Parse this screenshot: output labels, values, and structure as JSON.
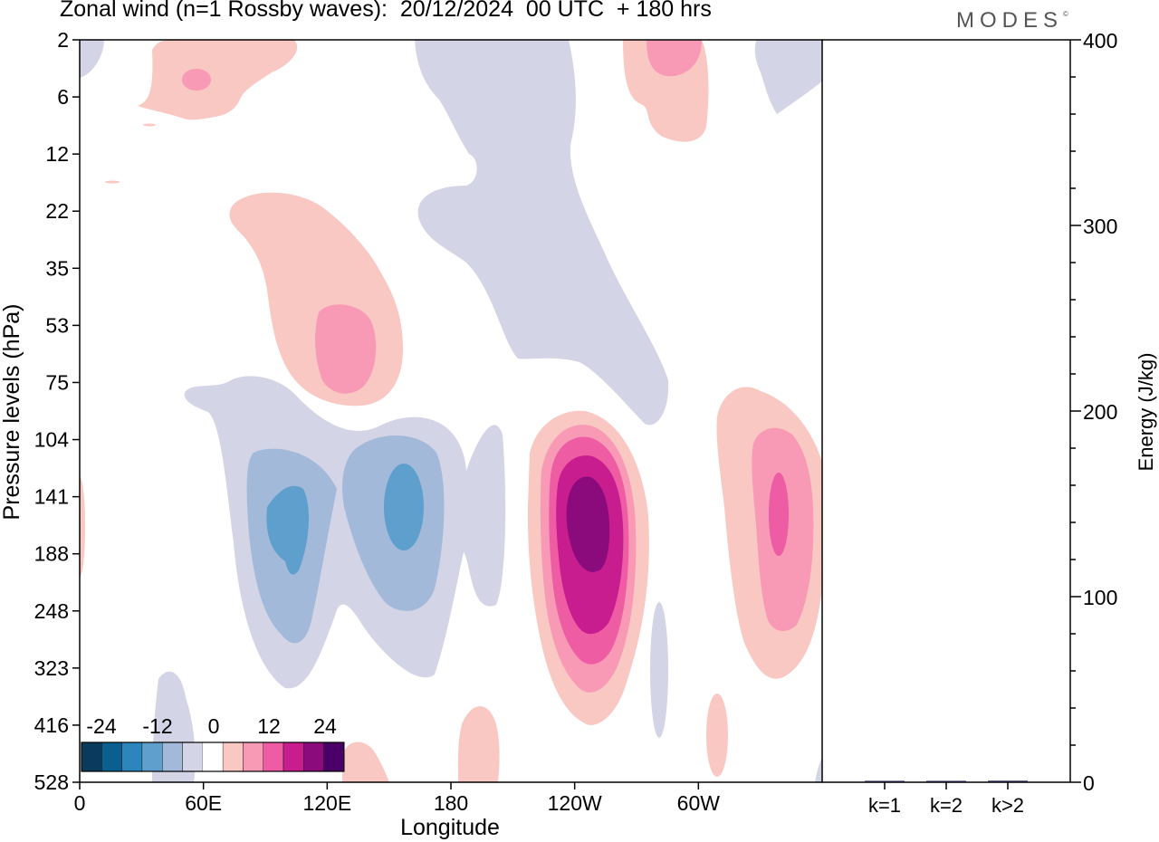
{
  "header": {
    "title": "Zonal wind (n=1 Rossby waves):  20/12/2024  00 UTC  + 180 hrs",
    "brand": "MODES",
    "brand_mark": "©"
  },
  "chart_data": [
    {
      "type": "heatmap",
      "title": "Zonal wind (n=1 Rossby waves):  20/12/2024  00 UTC  + 180 hrs",
      "xlabel": "Longitude",
      "ylabel": "Pressure levels (hPa)",
      "x_ticks": [
        "0",
        "60E",
        "120E",
        "180",
        "120W",
        "60W"
      ],
      "x_range_deg_east": [
        0,
        360
      ],
      "y_ticks": [
        "2",
        "6",
        "12",
        "22",
        "35",
        "53",
        "75",
        "104",
        "141",
        "188",
        "248",
        "323",
        "416",
        "528"
      ],
      "colorbar": {
        "labels": [
          "-24",
          "-12",
          "0",
          "12",
          "24"
        ],
        "levels": [
          -24,
          -20,
          -16,
          -12,
          -8,
          -4,
          4,
          8,
          12,
          16,
          20,
          24
        ],
        "colors": [
          "#0b3b5c",
          "#0b5f8f",
          "#2a86bd",
          "#5f9fcd",
          "#a3b9da",
          "#d3d4e6",
          "#ffffff",
          "#f9c8c3",
          "#f89ab5",
          "#ee5ca3",
          "#c81d8f",
          "#8b0a7c",
          "#4b0068"
        ]
      },
      "features": [
        {
          "sign": "negative",
          "lon": 100,
          "level": "141",
          "min_level": -16
        },
        {
          "sign": "negative",
          "lon": 160,
          "level": "141",
          "min_level": -16
        },
        {
          "sign": "positive",
          "lon": 243,
          "level": "141",
          "max_level": 24
        },
        {
          "sign": "positive",
          "lon": 337,
          "level": "141",
          "max_level": 16
        },
        {
          "sign": "positive",
          "lon": 128,
          "level": "53",
          "max_level": 8
        },
        {
          "sign": "positive",
          "lon": 55,
          "level": "2",
          "max_level": 8
        },
        {
          "sign": "positive",
          "lon": 290,
          "level": "2",
          "max_level": 8
        },
        {
          "sign": "negative",
          "lon": 200,
          "level": "12",
          "min_level": -4
        }
      ],
      "grid": false
    },
    {
      "type": "bar",
      "ylabel": "Energy (J/kg)",
      "categories": [
        "k=1",
        "k=2",
        "k>2"
      ],
      "values": [
        0.6,
        0.4,
        0.8
      ],
      "ylim": [
        0,
        400
      ],
      "y_ticks": [
        "0",
        "100",
        "200",
        "300",
        "400"
      ],
      "bar_color": "#1a1a3a"
    }
  ]
}
